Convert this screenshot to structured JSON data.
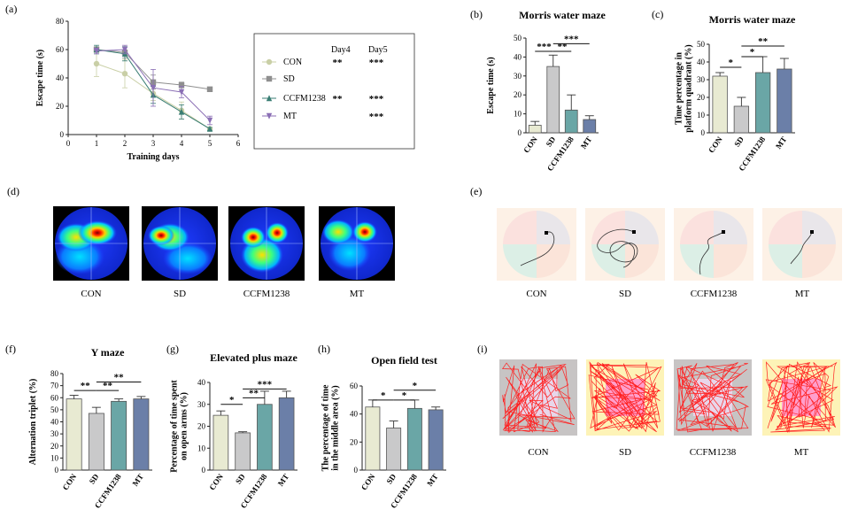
{
  "colors": {
    "con": "#e8ead2",
    "sd": "#c9c9ca",
    "ccfm": "#6aa6a6",
    "mt": "#6b7fa8",
    "axis": "#222222",
    "sig": "#111111"
  },
  "chart_data": [
    {
      "id": "a",
      "type": "line",
      "panel_label": "(a)",
      "title": "",
      "xlabel": "Training days",
      "ylabel": "Escape time (s)",
      "x": [
        1,
        2,
        3,
        4,
        5
      ],
      "xlim": [
        0,
        6
      ],
      "xticks": [
        0,
        1,
        2,
        3,
        4,
        5,
        6
      ],
      "ylim": [
        0,
        80
      ],
      "yticks": [
        0,
        20,
        40,
        60,
        80
      ],
      "series": [
        {
          "name": "CON",
          "color": "#c9cfa6",
          "marker": "circle",
          "values": [
            50,
            43,
            29,
            17,
            4
          ],
          "err": [
            9,
            10,
            5,
            6,
            1
          ]
        },
        {
          "name": "SD",
          "color": "#8f8f8f",
          "marker": "square",
          "values": [
            60,
            58,
            37,
            35,
            32
          ],
          "err": [
            2,
            4,
            5,
            2,
            1
          ]
        },
        {
          "name": "CCFM1238",
          "color": "#3a7e74",
          "marker": "triangle",
          "values": [
            60,
            57,
            28,
            16,
            4
          ],
          "err": [
            3,
            5,
            6,
            5,
            1
          ]
        },
        {
          "name": "MT",
          "color": "#8b6fb5",
          "marker": "triangle-down",
          "values": [
            59,
            60,
            33,
            30,
            10
          ],
          "err": [
            2,
            3,
            13,
            4,
            3
          ]
        }
      ],
      "legend": {
        "placement": "right",
        "headers": [
          "Day4",
          "Day5"
        ],
        "rows": [
          {
            "name": "CON",
            "day4": "**",
            "day5": "***"
          },
          {
            "name": "SD",
            "day4": "",
            "day5": ""
          },
          {
            "name": "CCFM1238",
            "day4": "**",
            "day5": "***"
          },
          {
            "name": "MT",
            "day4": "",
            "day5": "***"
          }
        ]
      }
    },
    {
      "id": "b",
      "type": "bar",
      "panel_label": "(b)",
      "title": "Morris water maze",
      "xlabel": "",
      "ylabel": "Escape time (s)",
      "categories": [
        "CON",
        "SD",
        "CCFM1238",
        "MT"
      ],
      "values": [
        4,
        35,
        12,
        7
      ],
      "err": [
        2,
        6,
        8,
        2
      ],
      "ylim": [
        0,
        50
      ],
      "yticks": [
        0,
        10,
        20,
        30,
        40,
        50
      ],
      "sig": [
        {
          "a": 0,
          "b": 1,
          "label": "***",
          "y": 43
        },
        {
          "a": 1,
          "b": 2,
          "label": "**",
          "y": 43
        },
        {
          "a": 1,
          "b": 3,
          "label": "***",
          "y": 47
        }
      ]
    },
    {
      "id": "c",
      "type": "bar",
      "panel_label": "(c)",
      "title": "Morris water maze",
      "xlabel": "",
      "ylabel": "Time percentage in platform quadrant (%)",
      "ylabel_lines": [
        "Time percentage in",
        "platform quadrant (%)"
      ],
      "categories": [
        "CON",
        "SD",
        "CCFM1238",
        "MT"
      ],
      "values": [
        32,
        15,
        34,
        36
      ],
      "err": [
        2,
        5,
        9,
        6
      ],
      "ylim": [
        0,
        50
      ],
      "yticks": [
        0,
        10,
        20,
        30,
        40,
        50
      ],
      "sig": [
        {
          "a": 0,
          "b": 1,
          "label": "*",
          "y": 37
        },
        {
          "a": 1,
          "b": 2,
          "label": "*",
          "y": 43
        },
        {
          "a": 1,
          "b": 3,
          "label": "**",
          "y": 49
        }
      ]
    },
    {
      "id": "f",
      "type": "bar",
      "panel_label": "(f)",
      "title": "Y maze",
      "xlabel": "",
      "ylabel": "Alternation triplet (%)",
      "categories": [
        "CON",
        "SD",
        "CCFM1238",
        "MT"
      ],
      "values": [
        59,
        47,
        57,
        59
      ],
      "err": [
        3,
        5,
        2,
        2
      ],
      "ylim": [
        0,
        80
      ],
      "yticks": [
        0,
        10,
        20,
        30,
        40,
        50,
        60,
        70,
        80
      ],
      "sig": [
        {
          "a": 0,
          "b": 1,
          "label": "**",
          "y": 66
        },
        {
          "a": 1,
          "b": 2,
          "label": "**",
          "y": 66
        },
        {
          "a": 1,
          "b": 3,
          "label": "**",
          "y": 73
        }
      ]
    },
    {
      "id": "g",
      "type": "bar",
      "panel_label": "(g)",
      "title": "Elevated plus maze",
      "xlabel": "",
      "ylabel": "Percentage of time spent on open arms (%)",
      "ylabel_lines": [
        "Percentage of time spent",
        "on open arms (%)"
      ],
      "categories": [
        "CON",
        "SD",
        "CCFM1238",
        "MT"
      ],
      "values": [
        25,
        17,
        30,
        33
      ],
      "err": [
        2,
        0.5,
        6,
        3
      ],
      "ylim": [
        0,
        40
      ],
      "yticks": [
        0,
        10,
        20,
        30,
        40
      ],
      "sig": [
        {
          "a": 0,
          "b": 1,
          "label": "*",
          "y": 30
        },
        {
          "a": 1,
          "b": 2,
          "label": "**",
          "y": 33
        },
        {
          "a": 1,
          "b": 3,
          "label": "***",
          "y": 37
        }
      ]
    },
    {
      "id": "h",
      "type": "bar",
      "panel_label": "(h)",
      "title": "Open field test",
      "xlabel": "",
      "ylabel": "The percentage of time in the middle area (%)",
      "ylabel_lines": [
        "The percentage of time",
        "in the middle area (%)"
      ],
      "categories": [
        "CON",
        "SD",
        "CCFM1238",
        "MT"
      ],
      "values": [
        45,
        30,
        44,
        43
      ],
      "err": [
        5,
        5,
        6,
        2
      ],
      "ylim": [
        0,
        60
      ],
      "yticks": [
        0,
        20,
        40,
        60
      ],
      "sig": [
        {
          "a": 0,
          "b": 1,
          "label": "*",
          "y": 50
        },
        {
          "a": 1,
          "b": 2,
          "label": "*",
          "y": 50
        },
        {
          "a": 1,
          "b": 3,
          "label": "*",
          "y": 57
        }
      ]
    }
  ],
  "image_panels": {
    "d": {
      "panel_label": "(d)",
      "groups": [
        "CON",
        "SD",
        "CCFM1238",
        "MT"
      ]
    },
    "e": {
      "panel_label": "(e)",
      "groups": [
        "CON",
        "SD",
        "CCFM1238",
        "MT"
      ]
    },
    "i": {
      "panel_label": "(i)",
      "groups": [
        "CON",
        "SD",
        "CCFM1238",
        "MT"
      ]
    }
  }
}
